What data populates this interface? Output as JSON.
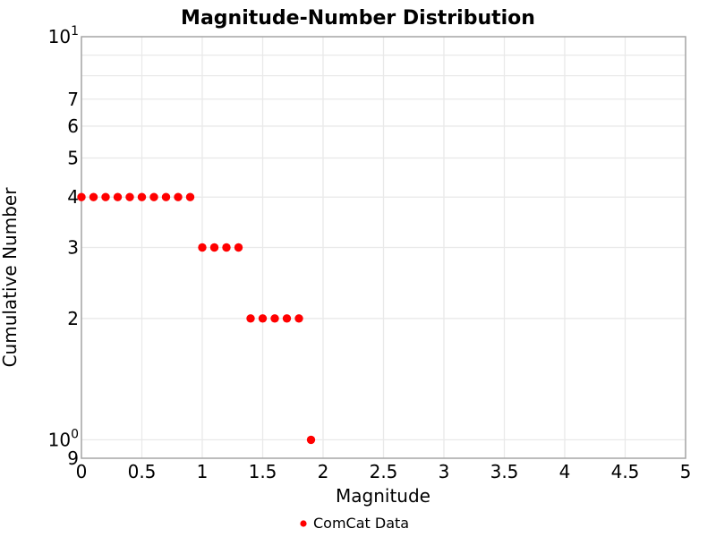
{
  "chart_data": {
    "type": "scatter",
    "title": "Magnitude-Number Distribution",
    "xlabel": "Magnitude",
    "ylabel": "Cumulative Number",
    "x_range": [
      0,
      5
    ],
    "y_range_log": [
      0.9,
      10
    ],
    "y_scale": "log",
    "grid": true,
    "x_ticks": [
      {
        "v": 0,
        "label": "0"
      },
      {
        "v": 0.5,
        "label": "0.5"
      },
      {
        "v": 1,
        "label": "1"
      },
      {
        "v": 1.5,
        "label": "1.5"
      },
      {
        "v": 2,
        "label": "2"
      },
      {
        "v": 2.5,
        "label": "2.5"
      },
      {
        "v": 3,
        "label": "3"
      },
      {
        "v": 3.5,
        "label": "3.5"
      },
      {
        "v": 4,
        "label": "4"
      },
      {
        "v": 4.5,
        "label": "4.5"
      },
      {
        "v": 5,
        "label": "5"
      }
    ],
    "y_ticks": [
      {
        "v": 10,
        "label": "10",
        "exp": "1"
      },
      {
        "v": 7,
        "label": "7"
      },
      {
        "v": 6,
        "label": "6"
      },
      {
        "v": 5,
        "label": "5"
      },
      {
        "v": 4,
        "label": "4"
      },
      {
        "v": 3,
        "label": "3"
      },
      {
        "v": 2,
        "label": "2"
      },
      {
        "v": 1,
        "label": "10",
        "exp": "0"
      },
      {
        "v": 0.9,
        "label": "9"
      }
    ],
    "x_gridlines": [
      0,
      0.5,
      1,
      1.5,
      2,
      2.5,
      3,
      3.5,
      4,
      4.5,
      5
    ],
    "y_gridlines": [
      1,
      2,
      3,
      4,
      5,
      6,
      7,
      8,
      9,
      10
    ],
    "legend": {
      "label": "ComCat Data",
      "marker_color": "#ff0000",
      "position": "bottom-center"
    },
    "series": [
      {
        "name": "ComCat Data",
        "color": "#ff0000",
        "marker": "circle",
        "marker_size": 4.7,
        "points": [
          [
            0.0,
            4
          ],
          [
            0.1,
            4
          ],
          [
            0.2,
            4
          ],
          [
            0.3,
            4
          ],
          [
            0.4,
            4
          ],
          [
            0.5,
            4
          ],
          [
            0.6,
            4
          ],
          [
            0.7,
            4
          ],
          [
            0.8,
            4
          ],
          [
            0.9,
            4
          ],
          [
            1.0,
            3
          ],
          [
            1.1,
            3
          ],
          [
            1.2,
            3
          ],
          [
            1.3,
            3
          ],
          [
            1.4,
            2
          ],
          [
            1.5,
            2
          ],
          [
            1.6,
            2
          ],
          [
            1.7,
            2
          ],
          [
            1.8,
            2
          ],
          [
            1.9,
            1
          ]
        ]
      }
    ],
    "colors": {
      "marker": "#ff0000",
      "grid": "#e9e9e9",
      "spine": "#a6a6a6",
      "text": "#000000",
      "background": "#ffffff"
    }
  }
}
